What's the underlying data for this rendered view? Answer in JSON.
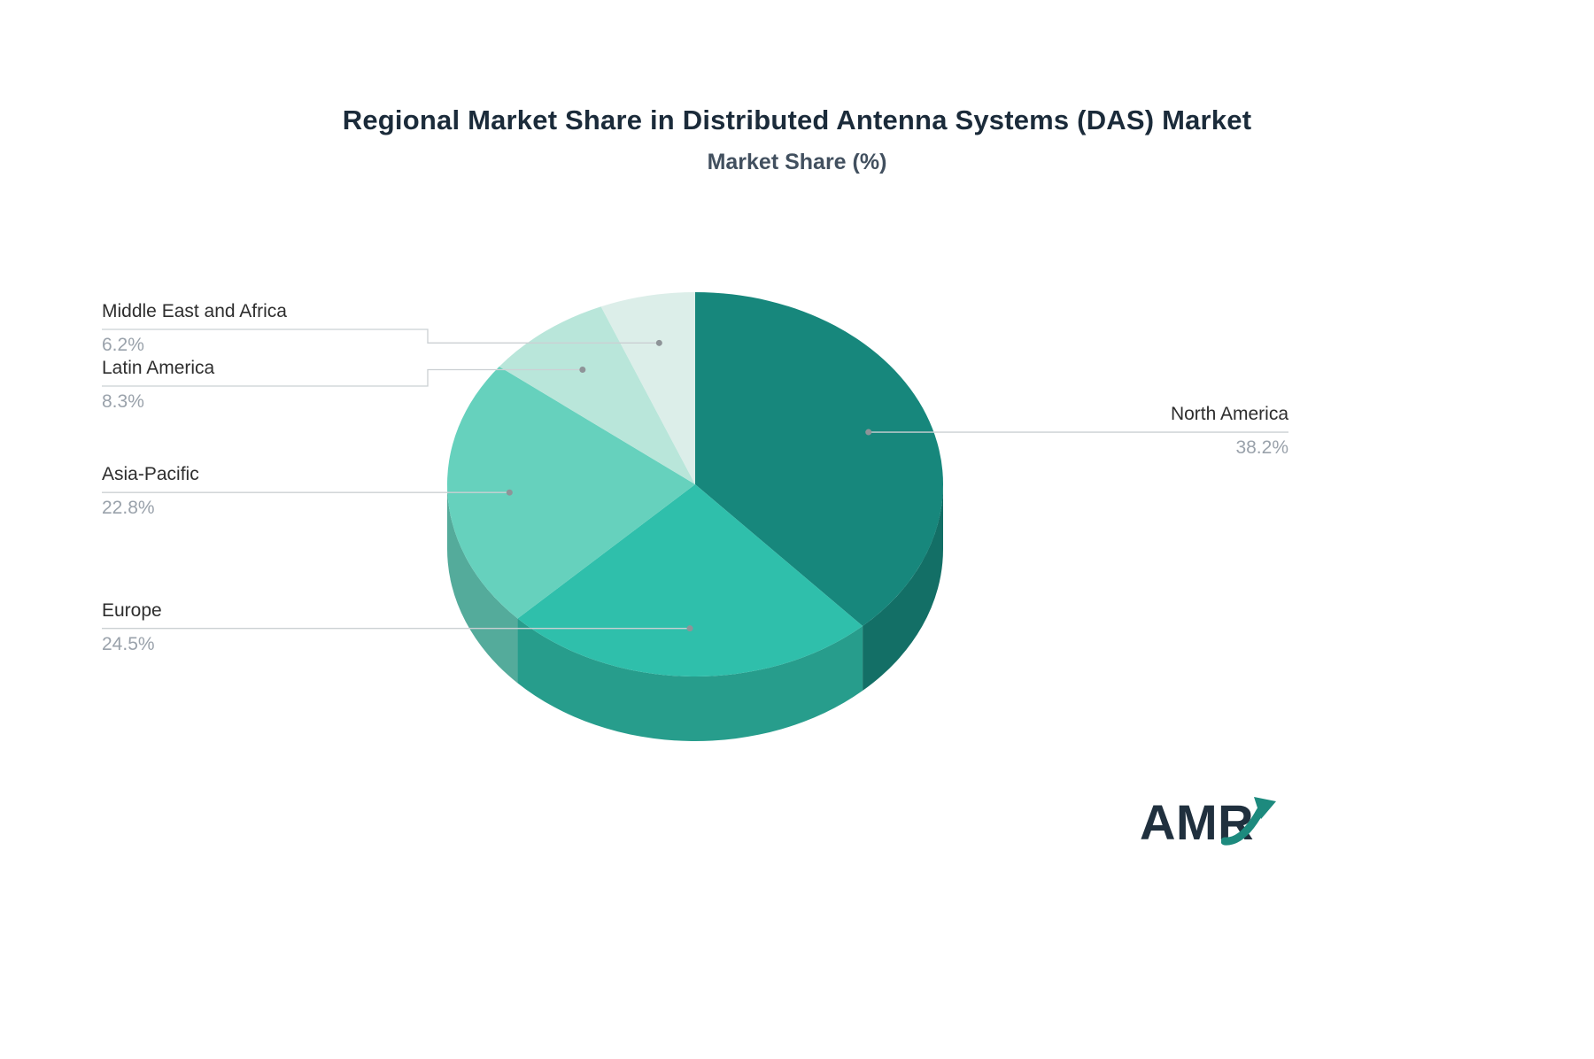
{
  "chart_data": {
    "type": "pie",
    "title": "Regional Market Share in Distributed Antenna Systems (DAS) Market",
    "subtitle": "Market Share (%)",
    "unit": "%",
    "start_angle_deg": -90,
    "direction": "clockwise",
    "style": "3d-pie",
    "legend_position": "connector-labels",
    "segments": [
      {
        "label": "North America",
        "value": 38.2,
        "display": "38.2%",
        "color": "#17877c"
      },
      {
        "label": "Europe",
        "value": 24.5,
        "display": "24.5%",
        "color": "#2fbfab"
      },
      {
        "label": "Asia-Pacific",
        "value": 22.8,
        "display": "22.8%",
        "color": "#66d1bd"
      },
      {
        "label": "Latin America",
        "value": 8.3,
        "display": "8.3%",
        "color": "#b9e6da"
      },
      {
        "label": "Middle East and Africa",
        "value": 6.2,
        "display": "6.2%",
        "color": "#dceee9"
      }
    ],
    "connector_color": "#cbd0d3",
    "dot_color": "#8e9498"
  },
  "logo": {
    "text": "AMR",
    "text_color": "#20303e",
    "arrow_color": "#1d8a7e"
  }
}
